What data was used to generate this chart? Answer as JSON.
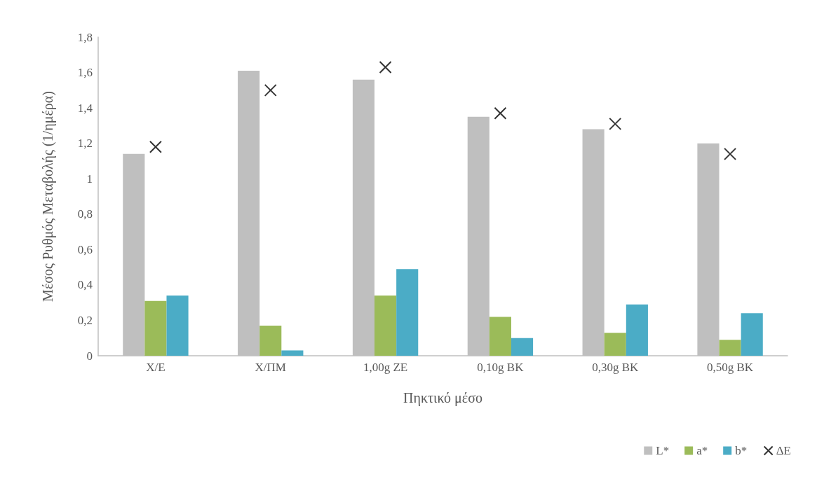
{
  "chart_data": {
    "type": "bar",
    "xlabel": "Πηκτικό μέσο",
    "ylabel": "Μέσος Ρυθμός Μεταβολής (1/ημέρα)",
    "categories": [
      "Χ/Ε",
      "Χ/ΠΜ",
      "1,00g ΖΕ",
      "0,10g ΒΚ",
      "0,30g ΒΚ",
      "0,50g ΒΚ"
    ],
    "series": [
      {
        "name": "L*",
        "color": "#bfbfbf",
        "values": [
          1.14,
          1.61,
          1.56,
          1.35,
          1.28,
          1.2
        ]
      },
      {
        "name": "a*",
        "color": "#9bbb59",
        "values": [
          0.31,
          0.17,
          0.34,
          0.22,
          0.13,
          0.09
        ]
      },
      {
        "name": "b*",
        "color": "#4bacc6",
        "values": [
          0.34,
          0.03,
          0.49,
          0.1,
          0.29,
          0.24
        ]
      },
      {
        "name": "ΔΕ",
        "type": "scatter",
        "color": "#000000",
        "marker": "cross",
        "x": [
          "Χ/Ε",
          "Χ/ΠΜ",
          "1,00g ΖΕ",
          "0,10g ΒΚ",
          "0,30g ΒΚ",
          "0,50g ΒΚ"
        ],
        "values": [
          1.18,
          1.5,
          1.63,
          1.37,
          1.31,
          1.14
        ]
      }
    ],
    "ylim": [
      0,
      1.8
    ],
    "yticks": [
      0,
      {
        "value": 0.2,
        "label": "0,2"
      },
      {
        "value": 0.4,
        "label": "0,4"
      },
      {
        "value": 0.6,
        "label": "0,6"
      },
      {
        "value": 0.8,
        "label": "0,8"
      },
      1,
      {
        "value": 1.2,
        "label": "1,2"
      },
      {
        "value": 1.4,
        "label": "1,4"
      },
      {
        "value": 1.6,
        "label": "1,6"
      },
      {
        "value": 1.8,
        "label": "1,8"
      }
    ],
    "grid": false,
    "legend": "bottom right"
  }
}
